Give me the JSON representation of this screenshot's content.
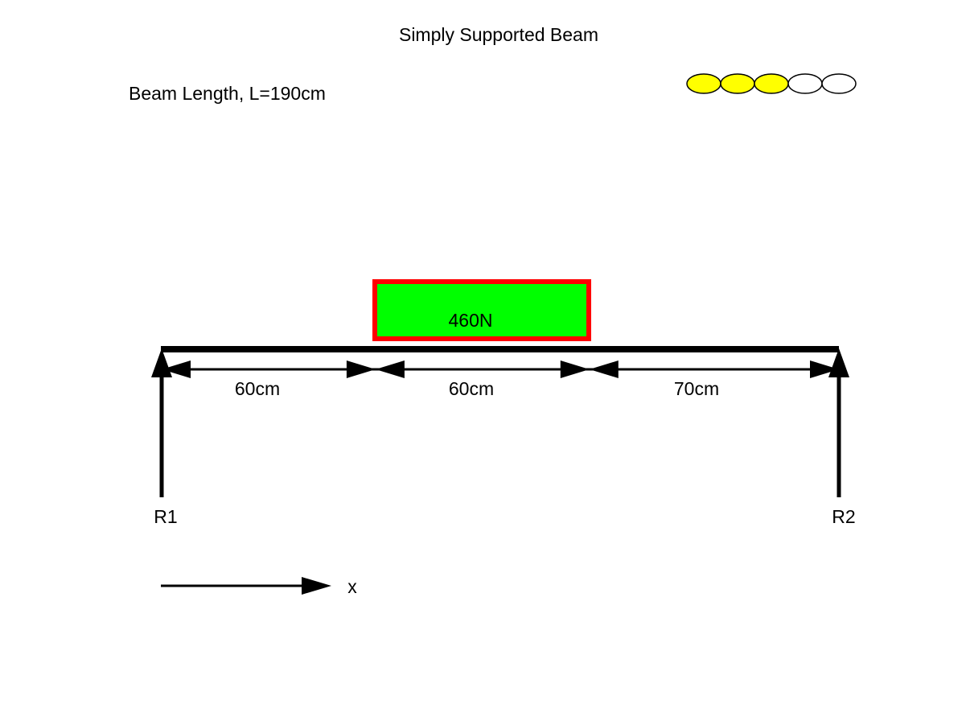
{
  "title": "Simply Supported Beam",
  "beam_length_label": "Beam Length, L=190cm",
  "beam_length_cm": 190,
  "progress": {
    "completed": 3,
    "total": 5,
    "filled_color": "#ffff00",
    "empty_color": "#ffffff"
  },
  "load": {
    "label": "460N",
    "value_N": 460,
    "start_cm": 60,
    "end_cm": 120,
    "fill_color": "#00ff00",
    "border_color": "#ff0000"
  },
  "segments": [
    {
      "label": "60cm",
      "length_cm": 60
    },
    {
      "label": "60cm",
      "length_cm": 60
    },
    {
      "label": "70cm",
      "length_cm": 70
    }
  ],
  "reactions": {
    "left_label": "R1",
    "right_label": "R2"
  },
  "axis_label": "x"
}
